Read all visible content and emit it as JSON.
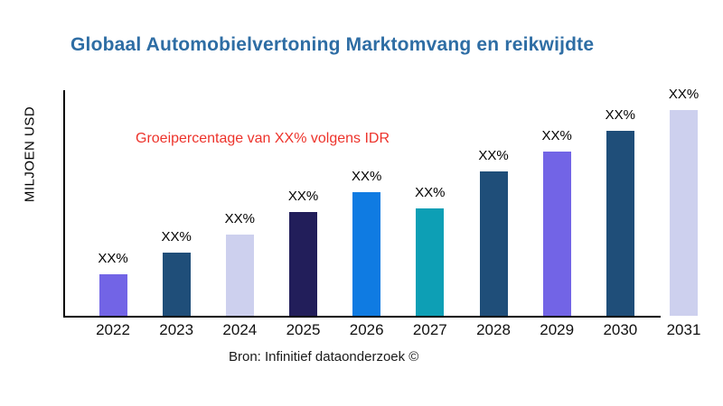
{
  "title": {
    "text": "Globaal Automobielvertoning Marktomvang en reikwijdte",
    "color": "#2e6da4"
  },
  "annotation": {
    "text": "Groeipercentage van XX% volgens IDR",
    "color": "#ed332b"
  },
  "axes": {
    "y_label": "MILJOEN USD"
  },
  "source": {
    "text": "Bron: Infinitief dataonderzoek ©"
  },
  "chart_data": {
    "type": "bar",
    "title": "Globaal Automobielvertoning Marktomvang en reikwijdte",
    "ylabel": "MILJOEN USD",
    "xlabel": "",
    "categories": [
      "2022",
      "2023",
      "2024",
      "2025",
      "2026",
      "2027",
      "2028",
      "2029",
      "2030",
      "2031"
    ],
    "values": [
      46,
      70,
      90,
      115,
      137,
      119,
      160,
      182,
      205,
      228
    ],
    "bar_labels": [
      "XX%",
      "XX%",
      "XX%",
      "XX%",
      "XX%",
      "XX%",
      "XX%",
      "XX%",
      "XX%",
      "XX%"
    ],
    "bar_colors": [
      "#7264e6",
      "#1f4e79",
      "#cdd0ee",
      "#221e5a",
      "#0f7be2",
      "#0d9fb5",
      "#1f4e79",
      "#7264e6",
      "#1f4e79",
      "#cdd0ee"
    ],
    "annotation": "Groeipercentage van XX% volgens IDR",
    "source": "Bron: Infinitief dataonderzoek ©",
    "grid": false,
    "legend": false,
    "value_axis_scale_shown": false,
    "axis_line_color": "#000000"
  }
}
